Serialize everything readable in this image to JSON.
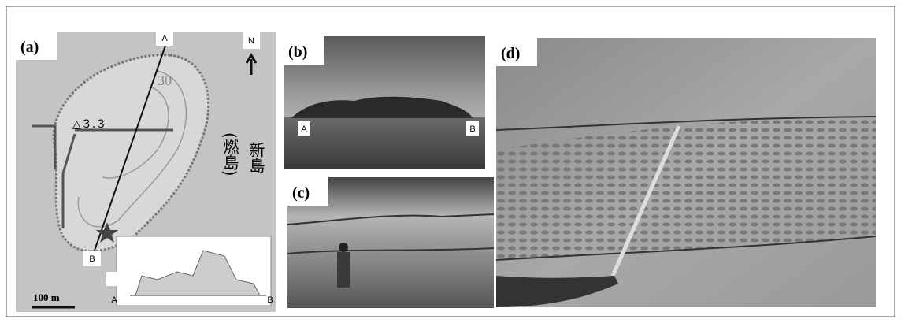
{
  "panels": [
    {
      "label": "(a)",
      "map": {
        "marker_top": "A",
        "marker_bottom": "B",
        "north": "N",
        "elevation": "△３.３",
        "contour": "30",
        "island_name": "新島",
        "island_alt_name": "(燃島)",
        "scale": "100 m",
        "profile_start": "A",
        "profile_end": "B"
      }
    },
    {
      "label": "(b)",
      "left": "A",
      "right": "B"
    },
    {
      "label": "(c)"
    },
    {
      "label": "(d)"
    }
  ]
}
